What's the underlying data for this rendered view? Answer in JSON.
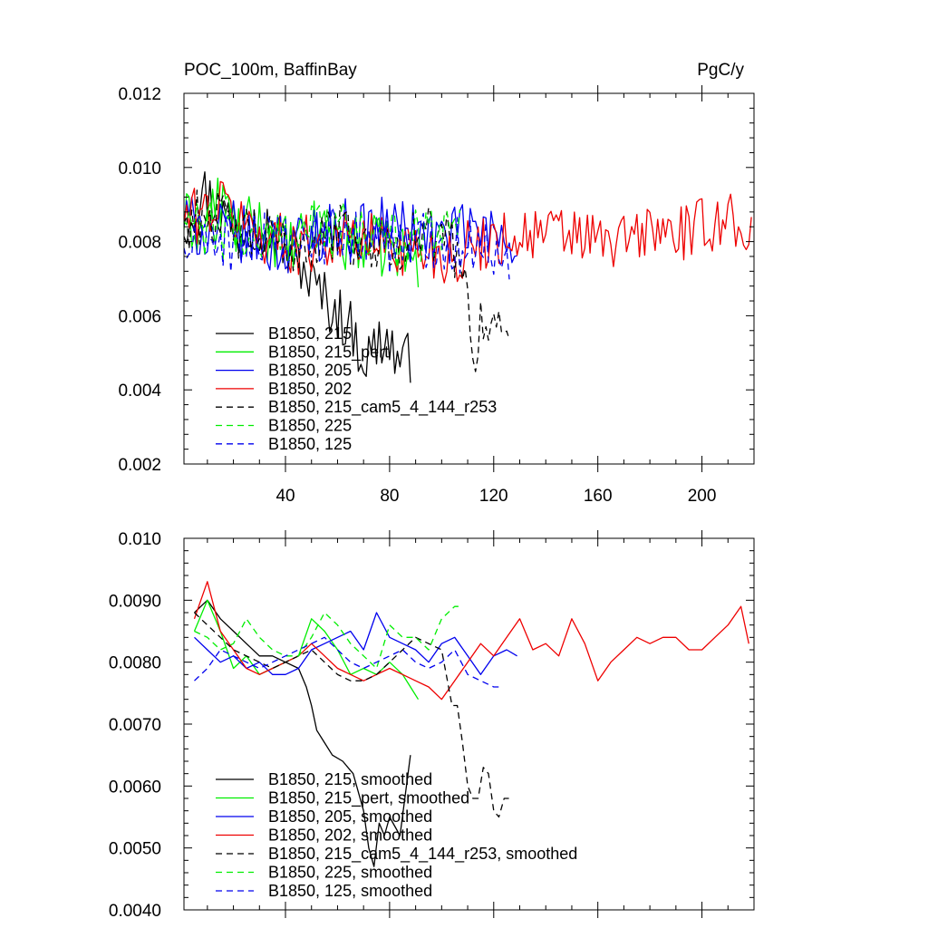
{
  "chart_data": [
    {
      "type": "line",
      "title": "POC_100m, BaffinBay",
      "units": "PgC/y",
      "xlabel": "",
      "ylabel": "",
      "xlim": [
        1,
        220
      ],
      "ylim": [
        0.002,
        0.012
      ],
      "xticks": [
        40,
        80,
        120,
        160,
        200
      ],
      "xtick_labels": [
        "40",
        "80",
        "120",
        "160",
        "200"
      ],
      "yticks": [
        0.002,
        0.004,
        0.006,
        0.008,
        0.01,
        0.012
      ],
      "ytick_labels": [
        "0.002",
        "0.004",
        "0.006",
        "0.008",
        "0.010",
        "0.012"
      ],
      "grid": false,
      "legend_position": "bottom-left",
      "series": [
        {
          "name": "B1850, 215",
          "color": "#000000",
          "dash": "solid",
          "length": 88,
          "x": [
            1,
            8,
            15,
            22,
            29,
            36,
            43,
            50,
            57,
            64,
            71,
            78,
            85,
            88
          ],
          "values": [
            0.0085,
            0.0094,
            0.0088,
            0.0083,
            0.0086,
            0.0082,
            0.0078,
            0.0069,
            0.0063,
            0.0058,
            0.0048,
            0.0055,
            0.0046,
            0.0049
          ]
        },
        {
          "name": "B1850, 215_pert",
          "color": "#00ee00",
          "dash": "solid",
          "length": 91,
          "x": [
            1,
            8,
            15,
            22,
            29,
            36,
            43,
            50,
            57,
            64,
            71,
            78,
            85,
            91
          ],
          "values": [
            0.0086,
            0.0083,
            0.0092,
            0.0083,
            0.0085,
            0.0081,
            0.0078,
            0.0083,
            0.0084,
            0.0079,
            0.008,
            0.0078,
            0.0077,
            0.0074
          ]
        },
        {
          "name": "B1850, 205",
          "color": "#0000ee",
          "dash": "solid",
          "length": 129,
          "x": [
            1,
            10,
            20,
            30,
            40,
            50,
            60,
            70,
            80,
            90,
            100,
            110,
            120,
            129
          ],
          "values": [
            0.0086,
            0.0082,
            0.0083,
            0.008,
            0.0078,
            0.0082,
            0.0084,
            0.0083,
            0.0085,
            0.0082,
            0.0081,
            0.0083,
            0.0082,
            0.0081
          ]
        },
        {
          "name": "B1850, 202",
          "color": "#ee0000",
          "dash": "solid",
          "length": 219,
          "x": [
            1,
            15,
            30,
            45,
            60,
            75,
            90,
            105,
            120,
            135,
            150,
            165,
            180,
            195,
            210,
            219
          ],
          "values": [
            0.0086,
            0.009,
            0.0082,
            0.0079,
            0.0081,
            0.008,
            0.0078,
            0.0076,
            0.0081,
            0.0082,
            0.0082,
            0.0079,
            0.0083,
            0.0082,
            0.0087,
            0.0082
          ]
        },
        {
          "name": "B1850, 215_cam5_4_144_r253",
          "color": "#000000",
          "dash": "dashed",
          "length": 126,
          "x": [
            1,
            10,
            20,
            30,
            40,
            50,
            60,
            70,
            80,
            90,
            100,
            108,
            112,
            116,
            120,
            126
          ],
          "values": [
            0.0085,
            0.0088,
            0.0083,
            0.0081,
            0.0078,
            0.008,
            0.0083,
            0.0079,
            0.008,
            0.0081,
            0.0082,
            0.0075,
            0.005,
            0.0061,
            0.0055,
            0.0058
          ]
        },
        {
          "name": "B1850, 225",
          "color": "#00ee00",
          "dash": "dashed",
          "length": 107,
          "x": [
            1,
            10,
            20,
            30,
            40,
            50,
            60,
            70,
            80,
            90,
            100,
            107
          ],
          "values": [
            0.0085,
            0.0083,
            0.0082,
            0.008,
            0.0081,
            0.0085,
            0.0083,
            0.0082,
            0.008,
            0.0082,
            0.0084,
            0.0085
          ]
        },
        {
          "name": "B1850, 125",
          "color": "#0000ee",
          "dash": "dashed",
          "length": 126,
          "x": [
            1,
            10,
            20,
            30,
            40,
            50,
            60,
            70,
            80,
            90,
            100,
            110,
            120,
            126
          ],
          "values": [
            0.0077,
            0.0082,
            0.0079,
            0.008,
            0.0079,
            0.0081,
            0.0082,
            0.008,
            0.0079,
            0.0081,
            0.008,
            0.0079,
            0.0078,
            0.0077
          ]
        }
      ]
    },
    {
      "type": "line",
      "title": "",
      "xlabel": "",
      "ylabel": "",
      "xlim": [
        1,
        220
      ],
      "ylim": [
        0.004,
        0.01
      ],
      "xticks": [
        40,
        80,
        120,
        160,
        200
      ],
      "yticks": [
        0.004,
        0.005,
        0.006,
        0.007,
        0.008,
        0.009,
        0.01
      ],
      "ytick_labels": [
        "0.0040",
        "0.0050",
        "0.0060",
        "0.0070",
        "0.0080",
        "0.0090",
        "0.010"
      ],
      "grid": false,
      "legend_position": "bottom-left",
      "series": [
        {
          "name": "B1850, 215, smoothed",
          "color": "#000000",
          "dash": "solid",
          "x": [
            5,
            10,
            15,
            20,
            25,
            30,
            35,
            40,
            45,
            48,
            50,
            52,
            55,
            58,
            62,
            66,
            70,
            72,
            74,
            76,
            78,
            80,
            84,
            88
          ],
          "values": [
            0.0088,
            0.009,
            0.0087,
            0.0085,
            0.0083,
            0.0081,
            0.0081,
            0.008,
            0.0079,
            0.0076,
            0.0073,
            0.0069,
            0.0067,
            0.0065,
            0.0064,
            0.0062,
            0.0056,
            0.005,
            0.0047,
            0.0054,
            0.0052,
            0.0055,
            0.0052,
            0.0065
          ]
        },
        {
          "name": "B1850, 215_pert, smoothed",
          "color": "#00ee00",
          "dash": "solid",
          "x": [
            5,
            10,
            15,
            20,
            25,
            30,
            35,
            40,
            45,
            50,
            55,
            60,
            65,
            70,
            75,
            80,
            85,
            88,
            91
          ],
          "values": [
            0.0085,
            0.009,
            0.0085,
            0.0079,
            0.0081,
            0.0078,
            0.0079,
            0.008,
            0.0081,
            0.0087,
            0.0085,
            0.0082,
            0.0078,
            0.0079,
            0.0078,
            0.008,
            0.0078,
            0.0076,
            0.0074
          ]
        },
        {
          "name": "B1850, 205, smoothed",
          "color": "#0000ee",
          "dash": "solid",
          "x": [
            5,
            10,
            15,
            20,
            25,
            30,
            35,
            40,
            45,
            50,
            55,
            60,
            65,
            70,
            75,
            80,
            85,
            90,
            95,
            100,
            105,
            110,
            115,
            120,
            125,
            129
          ],
          "values": [
            0.0084,
            0.0082,
            0.008,
            0.0081,
            0.0079,
            0.008,
            0.0078,
            0.0078,
            0.0079,
            0.0082,
            0.0083,
            0.0084,
            0.0085,
            0.0082,
            0.0088,
            0.0084,
            0.0083,
            0.0082,
            0.008,
            0.0083,
            0.0084,
            0.0081,
            0.0078,
            0.0081,
            0.0082,
            0.0081
          ]
        },
        {
          "name": "B1850, 202, smoothed",
          "color": "#ee0000",
          "dash": "solid",
          "x": [
            5,
            10,
            15,
            20,
            25,
            30,
            35,
            40,
            45,
            50,
            55,
            60,
            65,
            70,
            75,
            80,
            85,
            90,
            95,
            100,
            105,
            110,
            115,
            120,
            125,
            130,
            135,
            140,
            145,
            150,
            155,
            160,
            165,
            170,
            175,
            180,
            185,
            190,
            195,
            200,
            205,
            210,
            215,
            218
          ],
          "values": [
            0.0087,
            0.0093,
            0.0085,
            0.0082,
            0.0079,
            0.0078,
            0.0079,
            0.008,
            0.0081,
            0.0083,
            0.0081,
            0.0079,
            0.0078,
            0.0077,
            0.0078,
            0.0079,
            0.0078,
            0.0077,
            0.0076,
            0.0074,
            0.0077,
            0.008,
            0.0083,
            0.0081,
            0.0084,
            0.0087,
            0.0082,
            0.0083,
            0.0081,
            0.0087,
            0.0083,
            0.0077,
            0.008,
            0.0082,
            0.0084,
            0.0083,
            0.0084,
            0.0084,
            0.0082,
            0.0082,
            0.0084,
            0.0086,
            0.0089,
            0.0083
          ]
        },
        {
          "name": "B1850, 215_cam5_4_144_r253, smoothed",
          "color": "#000000",
          "dash": "dashed",
          "x": [
            5,
            10,
            15,
            20,
            25,
            30,
            35,
            40,
            45,
            50,
            55,
            60,
            65,
            70,
            75,
            80,
            85,
            90,
            95,
            100,
            104,
            106,
            108,
            110,
            112,
            114,
            116,
            118,
            120,
            122,
            124,
            126
          ],
          "values": [
            0.0088,
            0.0086,
            0.0084,
            0.0082,
            0.0081,
            0.008,
            0.0079,
            0.008,
            0.0081,
            0.0082,
            0.008,
            0.0078,
            0.0077,
            0.0077,
            0.0078,
            0.008,
            0.0082,
            0.0084,
            0.0083,
            0.0082,
            0.0073,
            0.0073,
            0.0067,
            0.006,
            0.0058,
            0.0058,
            0.0063,
            0.0062,
            0.0056,
            0.0055,
            0.0058,
            0.0058
          ]
        },
        {
          "name": "B1850, 225, smoothed",
          "color": "#00ee00",
          "dash": "dashed",
          "x": [
            5,
            10,
            15,
            20,
            25,
            30,
            35,
            40,
            45,
            50,
            55,
            60,
            65,
            70,
            75,
            80,
            85,
            90,
            95,
            100,
            105,
            107
          ],
          "values": [
            0.0085,
            0.0084,
            0.0082,
            0.0083,
            0.0087,
            0.0084,
            0.0082,
            0.0081,
            0.0081,
            0.0084,
            0.0088,
            0.0086,
            0.0083,
            0.0081,
            0.0079,
            0.0086,
            0.0084,
            0.0084,
            0.0082,
            0.0087,
            0.0089,
            0.0089
          ]
        },
        {
          "name": "B1850, 125, smoothed",
          "color": "#0000ee",
          "dash": "dashed",
          "x": [
            5,
            10,
            15,
            20,
            25,
            30,
            35,
            40,
            45,
            50,
            55,
            60,
            65,
            70,
            75,
            80,
            85,
            90,
            95,
            100,
            105,
            110,
            115,
            120,
            122
          ],
          "values": [
            0.0077,
            0.0079,
            0.0082,
            0.0081,
            0.008,
            0.0079,
            0.008,
            0.0081,
            0.0082,
            0.0083,
            0.0084,
            0.0082,
            0.008,
            0.0079,
            0.008,
            0.0081,
            0.0082,
            0.008,
            0.0079,
            0.008,
            0.0082,
            0.0078,
            0.0077,
            0.0076,
            0.0076
          ]
        }
      ]
    }
  ]
}
